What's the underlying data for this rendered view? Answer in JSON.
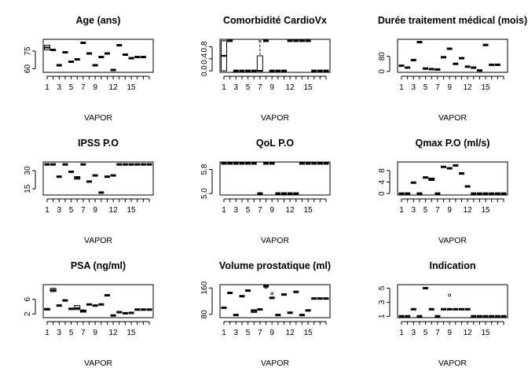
{
  "chart_data": [
    {
      "type": "boxplot",
      "title": "Age (ans)",
      "xlabel": "VAPOR",
      "x_tick_labels": [
        "1",
        "3",
        "5",
        "7",
        "9",
        "12",
        "15"
      ],
      "y_tick_labels": [
        "60",
        "75"
      ],
      "ylim": [
        57,
        85
      ],
      "categories": [
        "1",
        "2",
        "3",
        "4",
        "5",
        "6",
        "7",
        "8",
        "9",
        "10",
        "11",
        "12",
        "13",
        "14",
        "15",
        "16",
        "17",
        "18"
      ],
      "values": [
        78,
        76,
        63,
        74,
        66,
        68,
        82,
        73,
        63,
        70,
        73,
        59,
        80,
        72,
        69,
        70,
        70,
        null
      ],
      "boxes": [
        {
          "category": "1",
          "min": 76,
          "q1": 76,
          "median": 78,
          "q3": 80,
          "max": 80
        }
      ]
    },
    {
      "type": "boxplot",
      "title": "Comorbidité CardioVx",
      "xlabel": "VAPOR",
      "x_tick_labels": [
        "1",
        "3",
        "5",
        "7",
        "9",
        "12",
        "15"
      ],
      "y_tick_labels": [
        "0.0",
        "0.4",
        "0.8"
      ],
      "ylim": [
        -0.05,
        1.05
      ],
      "categories": [
        "1",
        "2",
        "3",
        "4",
        "5",
        "6",
        "7",
        "8",
        "9",
        "10",
        "11",
        "12",
        "13",
        "14",
        "15",
        "16",
        "17",
        "18"
      ],
      "values": [
        0.5,
        1,
        0,
        0,
        0,
        0,
        0,
        1,
        0,
        0,
        0,
        1,
        1,
        1,
        1,
        0,
        0,
        0
      ],
      "boxes": [
        {
          "category": "1",
          "min": 0,
          "q1": 0,
          "median": 0.5,
          "q3": 1,
          "max": 1
        },
        {
          "category": "7",
          "min": 0,
          "q1": 0,
          "median": 0,
          "q3": 0.5,
          "max": 1
        }
      ]
    },
    {
      "type": "boxplot",
      "title": "Durée traitement médical (mois)",
      "xlabel": "VAPOR",
      "x_tick_labels": [
        "1",
        "3",
        "5",
        "7",
        "9",
        "12",
        "15"
      ],
      "y_tick_labels": [
        "0",
        "80"
      ],
      "ylim": [
        -5,
        170
      ],
      "categories": [
        "1",
        "2",
        "3",
        "4",
        "5",
        "6",
        "7",
        "8",
        "9",
        "10",
        "11",
        "12",
        "13",
        "14",
        "15",
        "16",
        "17",
        "18"
      ],
      "values": [
        30,
        20,
        60,
        155,
        15,
        12,
        10,
        75,
        120,
        40,
        70,
        25,
        20,
        5,
        140,
        35,
        35,
        null
      ]
    },
    {
      "type": "boxplot",
      "title": "IPSS P.O",
      "xlabel": "VAPOR",
      "x_tick_labels": [
        "1",
        "3",
        "5",
        "7",
        "9",
        "12",
        "15"
      ],
      "y_tick_labels": [
        "15",
        "30"
      ],
      "ylim": [
        10,
        37
      ],
      "categories": [
        "1",
        "2",
        "3",
        "4",
        "5",
        "6",
        "7",
        "8",
        "9",
        "10",
        "11",
        "12",
        "13",
        "14",
        "15",
        "16",
        "17",
        "18"
      ],
      "values": [
        35,
        35,
        25,
        35,
        29,
        24,
        35,
        21,
        26,
        12,
        25,
        26,
        35,
        35,
        35,
        35,
        35,
        35
      ],
      "boxes": [
        {
          "category": "6",
          "min": 23,
          "q1": 23,
          "median": 24,
          "q3": 25,
          "max": 25
        }
      ]
    },
    {
      "type": "boxplot",
      "title": "QoL P.O",
      "xlabel": "VAPOR",
      "x_tick_labels": [
        "1",
        "3",
        "5",
        "7",
        "9",
        "12",
        "15"
      ],
      "y_tick_labels": [
        "5.0",
        "5.8"
      ],
      "ylim": [
        4.95,
        6.05
      ],
      "categories": [
        "1",
        "2",
        "3",
        "4",
        "5",
        "6",
        "7",
        "8",
        "9",
        "10",
        "11",
        "12",
        "13",
        "14",
        "15",
        "16",
        "17",
        "18"
      ],
      "values": [
        6,
        6,
        6,
        6,
        6,
        6,
        5,
        6,
        6,
        5,
        5,
        5,
        5,
        6,
        6,
        6,
        6,
        6
      ]
    },
    {
      "type": "boxplot",
      "title": "Qmax P.O (ml/s)",
      "xlabel": "VAPOR",
      "x_tick_labels": [
        "1",
        "3",
        "5",
        "7",
        "9",
        "12",
        "15"
      ],
      "y_tick_labels": [
        "0",
        "4",
        "8"
      ],
      "ylim": [
        -0.5,
        11
      ],
      "categories": [
        "1",
        "2",
        "3",
        "4",
        "5",
        "6",
        "7",
        "8",
        "9",
        "10",
        "11",
        "12",
        "13",
        "14",
        "15",
        "16",
        "17",
        "18"
      ],
      "values": [
        0,
        0,
        3.8,
        0,
        5.6,
        5.2,
        0,
        9.3,
        8.8,
        9.8,
        7,
        2.5,
        0,
        0,
        0,
        0,
        0,
        0
      ],
      "boxes": [
        {
          "category": "6",
          "min": 4.6,
          "q1": 4.6,
          "median": 5,
          "q3": 5.4,
          "max": 5.4
        }
      ]
    },
    {
      "type": "boxplot",
      "title": "PSA (ng/ml)",
      "xlabel": "VAPOR",
      "x_tick_labels": [
        "1",
        "3",
        "5",
        "7",
        "9",
        "12",
        "15"
      ],
      "y_tick_labels": [
        "2",
        "6"
      ],
      "ylim": [
        1,
        10
      ],
      "categories": [
        "1",
        "2",
        "3",
        "4",
        "5",
        "6",
        "7",
        "8",
        "9",
        "10",
        "11",
        "12",
        "13",
        "14",
        "15",
        "16",
        "17",
        "18"
      ],
      "values": [
        3.3,
        8.5,
        4.3,
        5.7,
        3.4,
        3.6,
        2.8,
        4.6,
        4.3,
        4.6,
        7.1,
        1.6,
        2.5,
        2.2,
        2.3,
        3.2,
        3.2,
        3.2
      ],
      "boxes": [
        {
          "category": "1",
          "min": 3.1,
          "q1": 3.1,
          "median": 3.3,
          "q3": 3.5,
          "max": 3.5
        },
        {
          "category": "2",
          "min": 8.1,
          "q1": 8.1,
          "median": 8.5,
          "q3": 9.0,
          "max": 9.0
        },
        {
          "category": "6",
          "min": 3.2,
          "q1": 3.2,
          "median": 3.6,
          "q3": 4.3,
          "max": 4.3
        },
        {
          "category": "7",
          "min": 2.5,
          "q1": 2.5,
          "median": 2.8,
          "q3": 3.1,
          "max": 3.1
        }
      ]
    },
    {
      "type": "boxplot",
      "title": "Volume prostatique (ml)",
      "xlabel": "VAPOR",
      "x_tick_labels": [
        "1",
        "3",
        "5",
        "7",
        "9",
        "12",
        "15"
      ],
      "y_tick_labels": [
        "80",
        "160"
      ],
      "ylim": [
        70,
        170
      ],
      "categories": [
        "1",
        "2",
        "3",
        "4",
        "5",
        "6",
        "7",
        "8",
        "9",
        "10",
        "11",
        "12",
        "13",
        "14",
        "15",
        "16",
        "17",
        "18"
      ],
      "values": [
        100,
        145,
        78,
        135,
        152,
        90,
        95,
        165,
        130,
        78,
        140,
        85,
        148,
        78,
        92,
        128,
        128,
        128
      ],
      "boxes": [
        {
          "category": "6",
          "min": 86,
          "q1": 86,
          "median": 90,
          "q3": 94,
          "max": 94
        }
      ],
      "outliers": [
        {
          "category": "8",
          "value": 162
        },
        {
          "category": "9",
          "value": 143
        }
      ]
    },
    {
      "type": "boxplot",
      "title": "Indication",
      "xlabel": "VAPOR",
      "x_tick_labels": [
        "1",
        "3",
        "5",
        "7",
        "9",
        "12",
        "15"
      ],
      "y_tick_labels": [
        "1",
        "3",
        "5"
      ],
      "ylim": [
        0.8,
        5.5
      ],
      "categories": [
        "1",
        "2",
        "3",
        "4",
        "5",
        "6",
        "7",
        "8",
        "9",
        "10",
        "11",
        "12",
        "13",
        "14",
        "15",
        "16",
        "17",
        "18"
      ],
      "values": [
        1,
        1,
        2,
        1,
        5,
        2,
        1,
        2,
        2,
        2,
        2,
        2,
        1,
        1,
        1,
        1,
        1,
        1
      ],
      "outliers": [
        {
          "category": "9",
          "value": 4
        }
      ]
    }
  ]
}
